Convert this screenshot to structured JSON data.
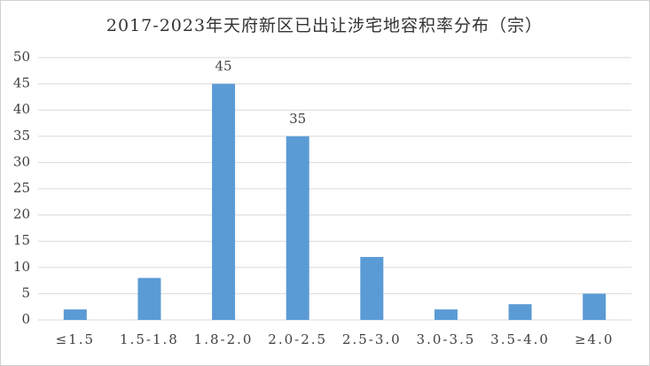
{
  "chart_data": {
    "type": "bar",
    "title": "2017-2023年天府新区已出让涉宅地容积率分布（宗）",
    "categories": [
      "≤1.5",
      "1.5-1.8",
      "1.8-2.0",
      "2.0-2.5",
      "2.5-3.0",
      "3.0-3.5",
      "3.5-4.0",
      "≥4.0"
    ],
    "values": [
      2,
      8,
      45,
      35,
      12,
      2,
      3,
      5
    ],
    "value_labels": [
      null,
      null,
      "45",
      "35",
      null,
      null,
      null,
      null
    ],
    "color": "#5b9bd5",
    "ylim": [
      0,
      50
    ],
    "yticks": [
      0,
      5,
      10,
      15,
      20,
      25,
      30,
      35,
      40,
      45,
      50
    ],
    "grid": true
  }
}
